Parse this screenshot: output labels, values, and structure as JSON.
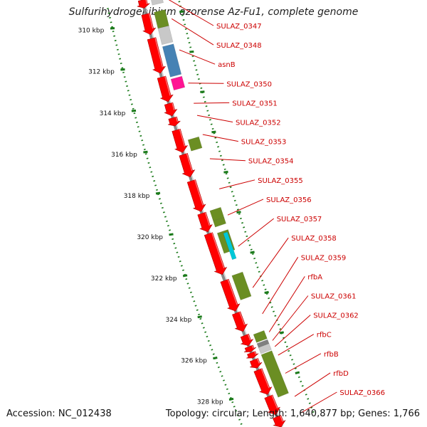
{
  "title": "Sulfurihydrogenibium azorense Az-Fu1, complete genome",
  "footer": {
    "accession": "Accession: NC_012438",
    "summary": "Topology: circular; Length: 1,640,877 bp; Genes: 1,766"
  },
  "scale": {
    "start_kbp": 309,
    "end_kbp": 330,
    "tick_labels": [
      "310 kbp",
      "312 kbp",
      "314 kbp",
      "316 kbp",
      "318 kbp",
      "320 kbp",
      "322 kbp",
      "324 kbp",
      "326 kbp",
      "328 kbp"
    ]
  },
  "colors": {
    "cds": "#ff0000",
    "backbone": "#888888",
    "tick": "#1a7a1a",
    "label": "#cc0000"
  },
  "genes": [
    {
      "name": "SULAZ_0347",
      "start": 309.0,
      "end": 309.4
    },
    {
      "name": "SULAZ_0348",
      "start": 309.7,
      "end": 310.7
    },
    {
      "name": "asnB",
      "start": 310.9,
      "end": 312.6
    },
    {
      "name": "SULAZ_0350",
      "start": 312.8,
      "end": 314.0
    },
    {
      "name": "SULAZ_0351",
      "start": 314.1,
      "end": 314.7
    },
    {
      "name": "SULAZ_0352",
      "start": 314.8,
      "end": 315.2
    },
    {
      "name": "SULAZ_0353",
      "start": 315.4,
      "end": 316.5
    },
    {
      "name": "SULAZ_0354",
      "start": 316.6,
      "end": 317.7
    },
    {
      "name": "SULAZ_0355",
      "start": 317.9,
      "end": 319.4
    },
    {
      "name": "SULAZ_0356",
      "start": 319.5,
      "end": 320.4
    },
    {
      "name": "SULAZ_0357",
      "start": 320.5,
      "end": 322.5
    },
    {
      "name": "SULAZ_0358",
      "start": 322.8,
      "end": 324.3
    },
    {
      "name": "SULAZ_0359",
      "start": 324.4,
      "end": 325.3
    },
    {
      "name": "rfbA",
      "start": 325.5,
      "end": 326.0
    },
    {
      "name": "SULAZ_0361",
      "start": 326.05,
      "end": 326.3
    },
    {
      "name": "SULAZ_0362",
      "start": 326.35,
      "end": 326.6
    },
    {
      "name": "rfbC",
      "start": 326.7,
      "end": 327.1
    },
    {
      "name": "rfbB",
      "start": 327.2,
      "end": 328.4
    },
    {
      "name": "rfbD",
      "start": 328.5,
      "end": 329.4
    },
    {
      "name": "SULAZ_0366",
      "start": 329.5,
      "end": 330.0
    }
  ],
  "features": [
    {
      "ring": "outer",
      "start": 309.0,
      "end": 309.35,
      "color": "#c8c8c8"
    },
    {
      "ring": "outer",
      "start": 309.7,
      "end": 310.5,
      "color": "#6b8e23"
    },
    {
      "ring": "outer",
      "start": 310.5,
      "end": 311.3,
      "color": "#c8c8c8"
    },
    {
      "ring": "outer",
      "start": 311.4,
      "end": 312.9,
      "color": "#4682b4"
    },
    {
      "ring": "outer",
      "start": 313.0,
      "end": 313.55,
      "color": "#ff1493"
    },
    {
      "ring": "outer",
      "start": 316.0,
      "end": 316.55,
      "color": "#6b8e23"
    },
    {
      "ring": "outer",
      "start": 319.5,
      "end": 320.0,
      "color": "#6b8e23"
    },
    {
      "ring": "outer",
      "start": 320.0,
      "end": 320.3,
      "color": "#6b8e23"
    },
    {
      "ring": "outer",
      "start": 320.6,
      "end": 321.6,
      "color": "#6b8e23"
    },
    {
      "ring": "inner2",
      "start": 320.7,
      "end": 322.0,
      "color": "#00c8d8"
    },
    {
      "ring": "outer",
      "start": 322.7,
      "end": 323.9,
      "color": "#6b8e23"
    },
    {
      "ring": "outer",
      "start": 325.6,
      "end": 326.0,
      "color": "#6b8e23"
    },
    {
      "ring": "outer",
      "start": 326.05,
      "end": 326.25,
      "color": "#808080"
    },
    {
      "ring": "outer",
      "start": 326.25,
      "end": 326.55,
      "color": "#c8c8c8"
    },
    {
      "ring": "outer",
      "start": 326.6,
      "end": 328.7,
      "color": "#6b8e23"
    }
  ]
}
